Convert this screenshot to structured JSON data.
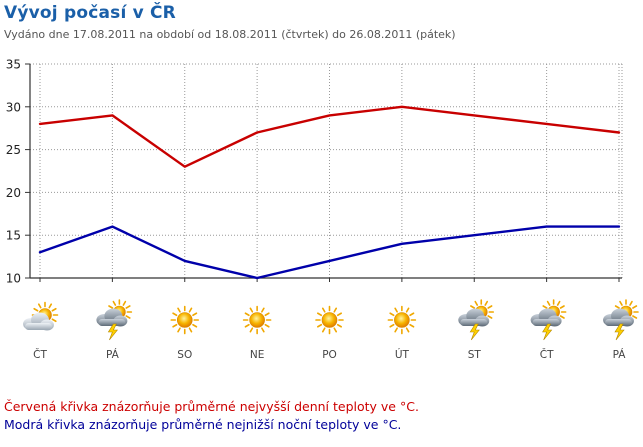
{
  "header": {
    "title": "Vývoj počasí v ČR",
    "subtitle": "Vydáno dne 17.08.2011 na období od 18.08.2011 (čtvrtek) do 26.08.2011 (pátek)"
  },
  "chart_data": {
    "type": "line",
    "categories": [
      "ČT",
      "PÁ",
      "SO",
      "NE",
      "PO",
      "ÚT",
      "ST",
      "ČT",
      "PÁ"
    ],
    "weather_icons": [
      "sun-behind-cloud-icon",
      "thunderstorm-sun-icon",
      "sun-icon",
      "sun-icon",
      "sun-icon",
      "sun-icon",
      "thunderstorm-sun-icon",
      "thunderstorm-sun-icon",
      "thunderstorm-sun-icon"
    ],
    "series": [
      {
        "values": [
          28,
          29,
          23,
          27,
          29,
          30,
          29,
          28,
          27
        ],
        "color": "#c80000"
      },
      {
        "values": [
          13,
          16,
          12,
          10,
          12,
          14,
          15,
          16,
          16
        ],
        "color": "#0000aa"
      }
    ],
    "ylim": [
      10,
      35
    ],
    "yticks": [
      10,
      15,
      20,
      25,
      30,
      35
    ],
    "grid": true
  },
  "legend": {
    "red_text": "Červená křivka znázorňuje průměrné nejvyšší denní teploty ve °C.",
    "blue_text": "Modrá křivka znázorňuje průměrné nejnižší noční teploty ve °C."
  }
}
